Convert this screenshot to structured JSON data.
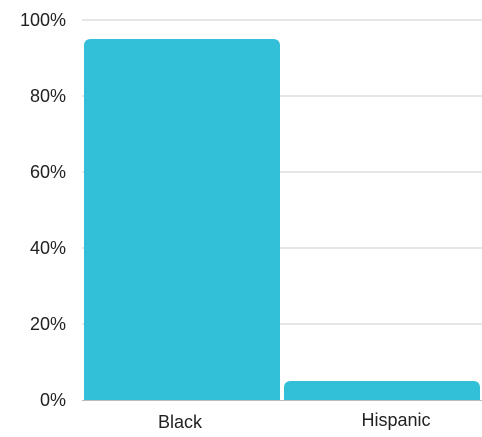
{
  "chart_data": {
    "type": "bar",
    "categories": [
      "Black",
      "Hispanic"
    ],
    "values": [
      95,
      5
    ],
    "value_format": "percent",
    "ylim": [
      0,
      100
    ],
    "yticks": [
      0,
      20,
      40,
      60,
      80,
      100
    ],
    "ytick_labels": [
      "0%",
      "20%",
      "40%",
      "60%",
      "80%",
      "100%"
    ],
    "grid": true,
    "title": "",
    "xlabel": "",
    "ylabel": "",
    "colors": {
      "bar": "#31C0D7",
      "grid": "#CCCCCC",
      "axis": "#BBBBBB",
      "text": "#222222"
    }
  }
}
